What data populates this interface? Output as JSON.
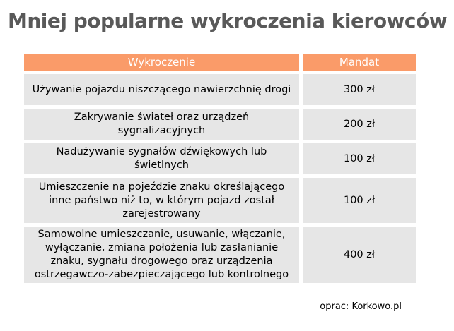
{
  "title": "Mniej popularne wykroczenia kierowców",
  "chart_data": {
    "type": "table",
    "title": "Mniej popularne wykroczenia kierowców",
    "columns": [
      "Wykroczenie",
      "Mandat"
    ],
    "rows": [
      [
        "Używanie pojazdu niszczącego nawierzchnię drogi",
        "300 zł"
      ],
      [
        "Zakrywanie świateł oraz urządzeń sygnalizacyjnych",
        "200 zł"
      ],
      [
        "Nadużywanie sygnałów dźwiękowych lub świetlnych",
        "100 zł"
      ],
      [
        "Umieszczenie na pojeździe znaku określającego inne państwo niż to, w którym pojazd został zarejestrowany",
        "100 zł"
      ],
      [
        "Samowolne umieszczanie, usuwanie, włączanie, wyłączanie, zmiana położenia lub zasłanianie znaku, sygnału drogowego oraz urządzenia ostrzegawczo-zabezpieczającego lub kontrolnego",
        "400 zł"
      ]
    ],
    "fines_currency": "zł",
    "fine_values": [
      300,
      200,
      100,
      100,
      400
    ]
  },
  "footer": {
    "credit": "oprac: Korkowo.pl"
  },
  "colors": {
    "header_bg": "#fa9b69",
    "row_bg": "#e6e6e6",
    "title_color": "#595959",
    "page_bg": "#ffffff"
  }
}
